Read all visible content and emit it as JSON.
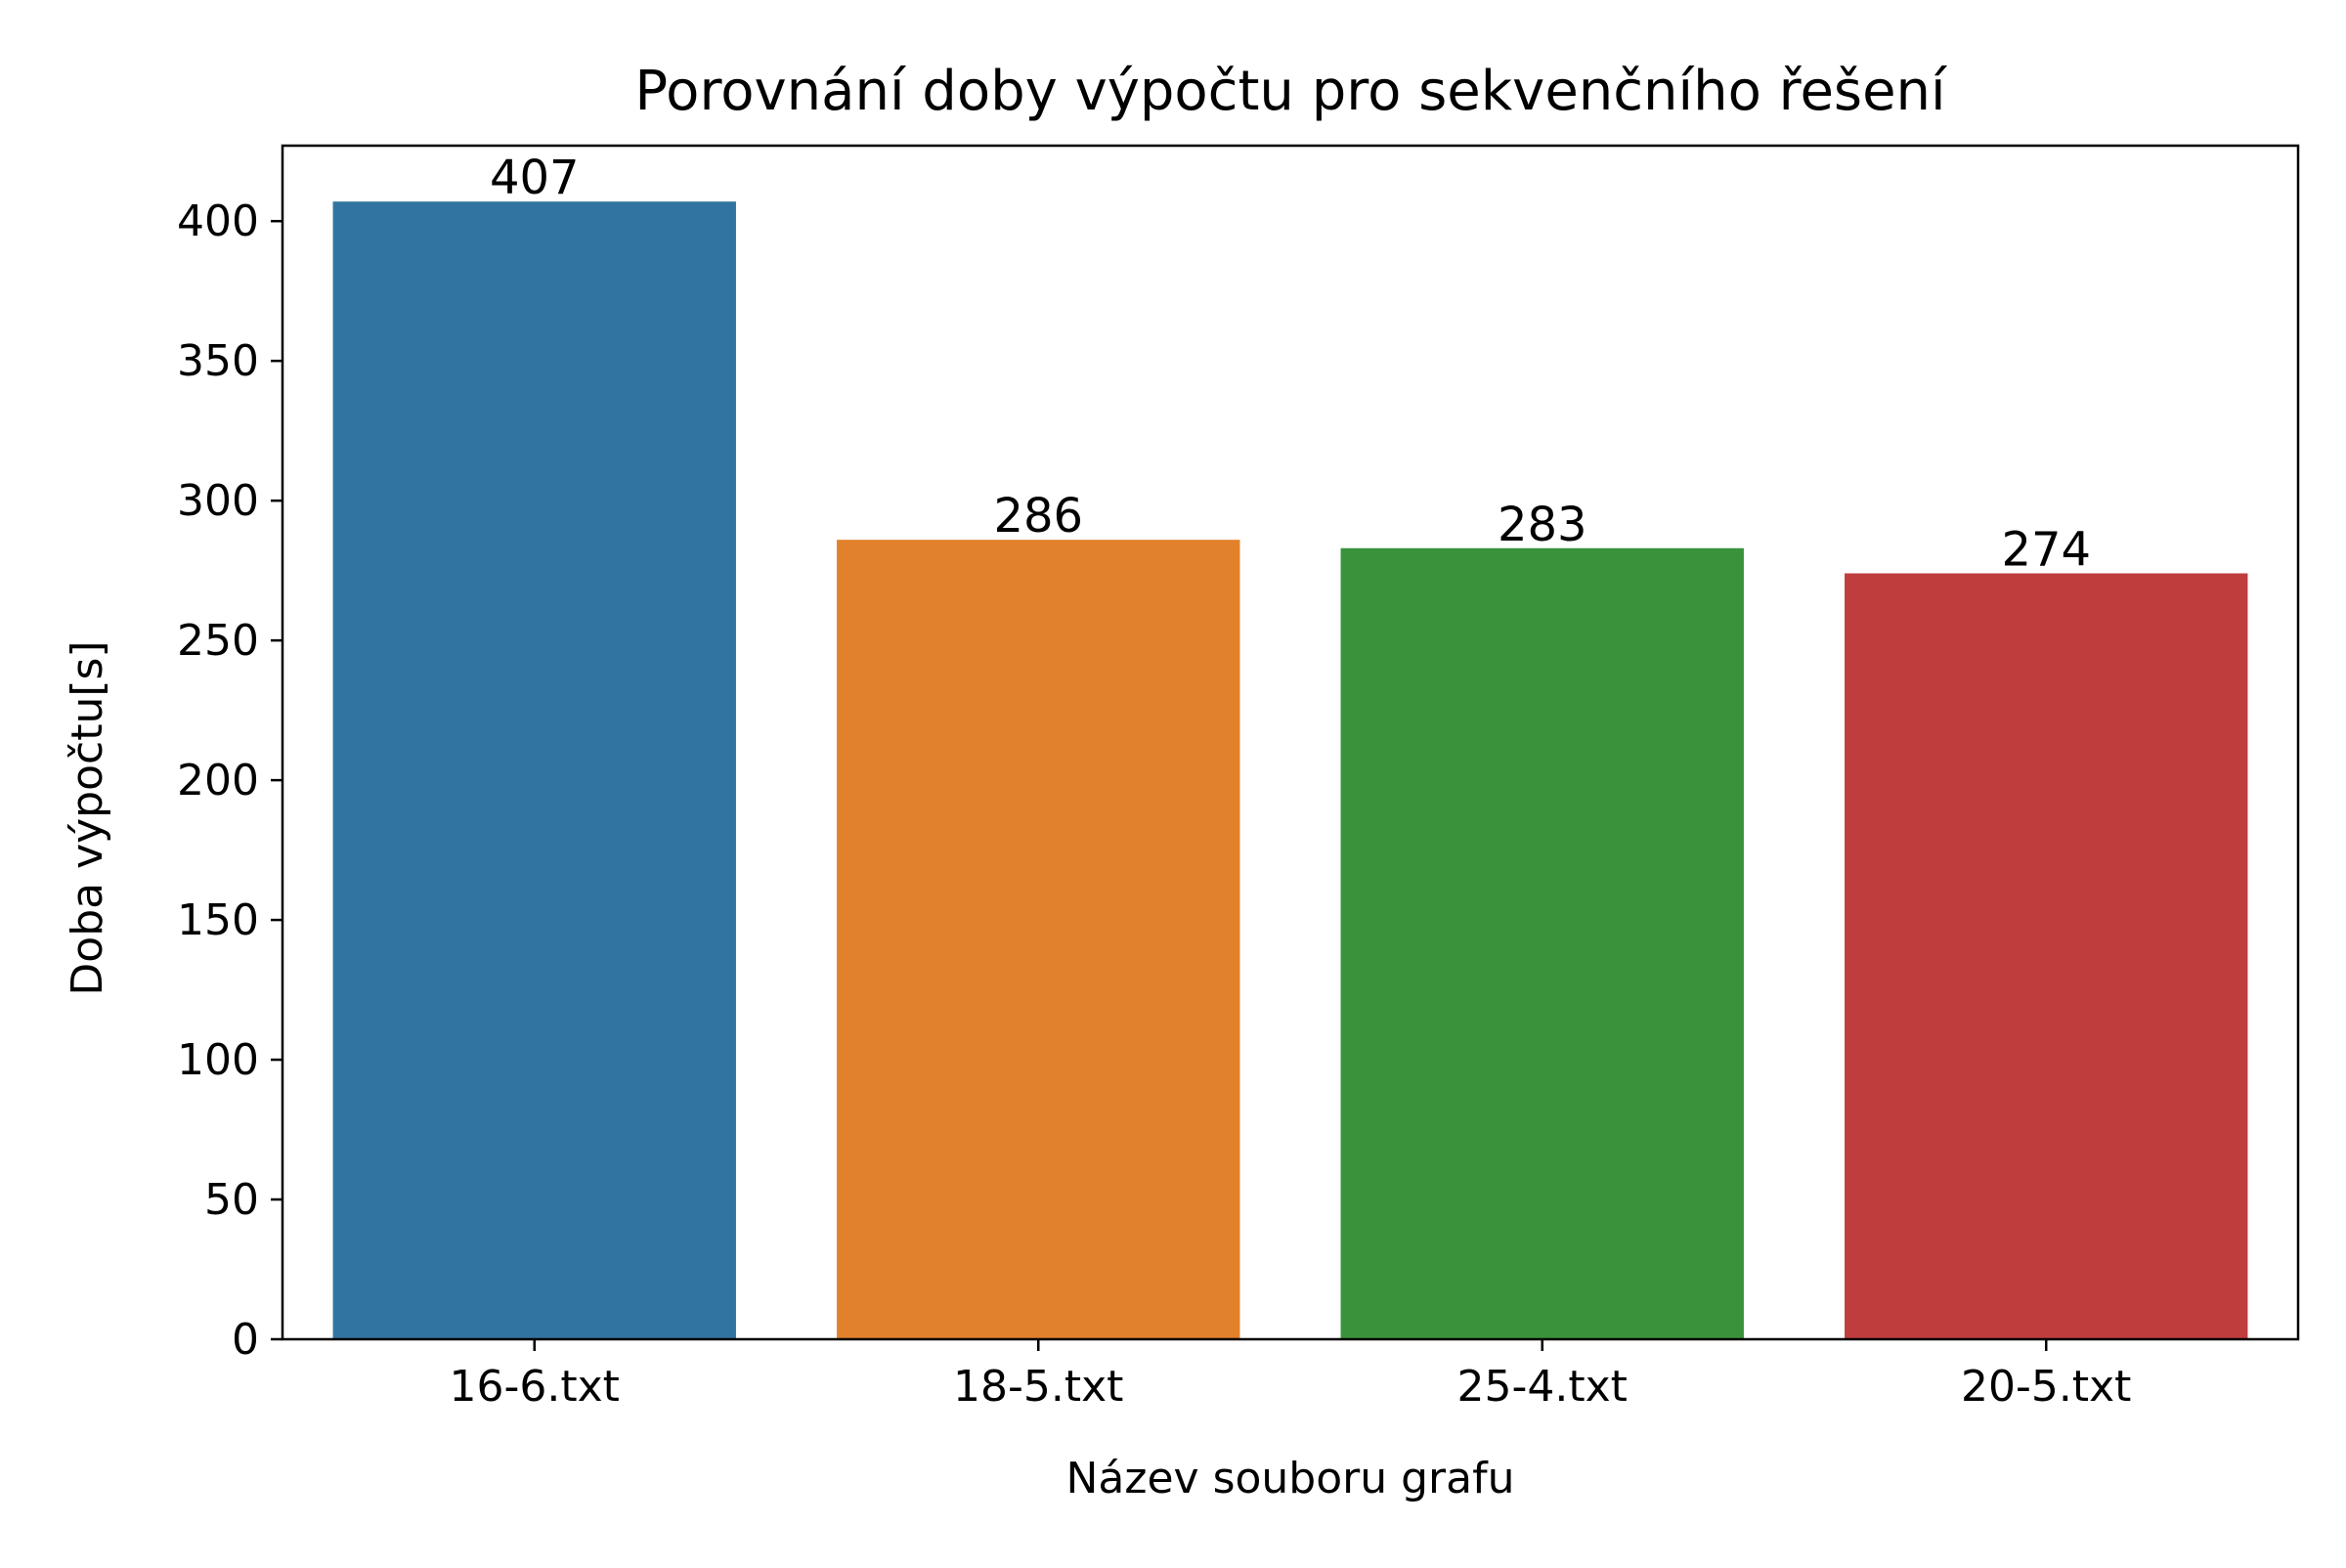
{
  "chart_data": {
    "type": "bar",
    "title": "Porovnání doby výpočtu pro sekvenčního řešení",
    "xlabel": "Název souboru grafu",
    "ylabel": "Doba výpočtu[s]",
    "categories": [
      "16-6.txt",
      "18-5.txt",
      "25-4.txt",
      "20-5.txt"
    ],
    "values": [
      407,
      286,
      283,
      274
    ],
    "data_labels": [
      "407",
      "286",
      "283",
      "274"
    ],
    "colors": [
      "#3274a1",
      "#e1812c",
      "#3a923a",
      "#c03d3e"
    ],
    "ylim": [
      0,
      427
    ],
    "yticks": [
      0,
      50,
      100,
      150,
      200,
      250,
      300,
      350,
      400
    ],
    "grid": false,
    "legend": "none"
  }
}
